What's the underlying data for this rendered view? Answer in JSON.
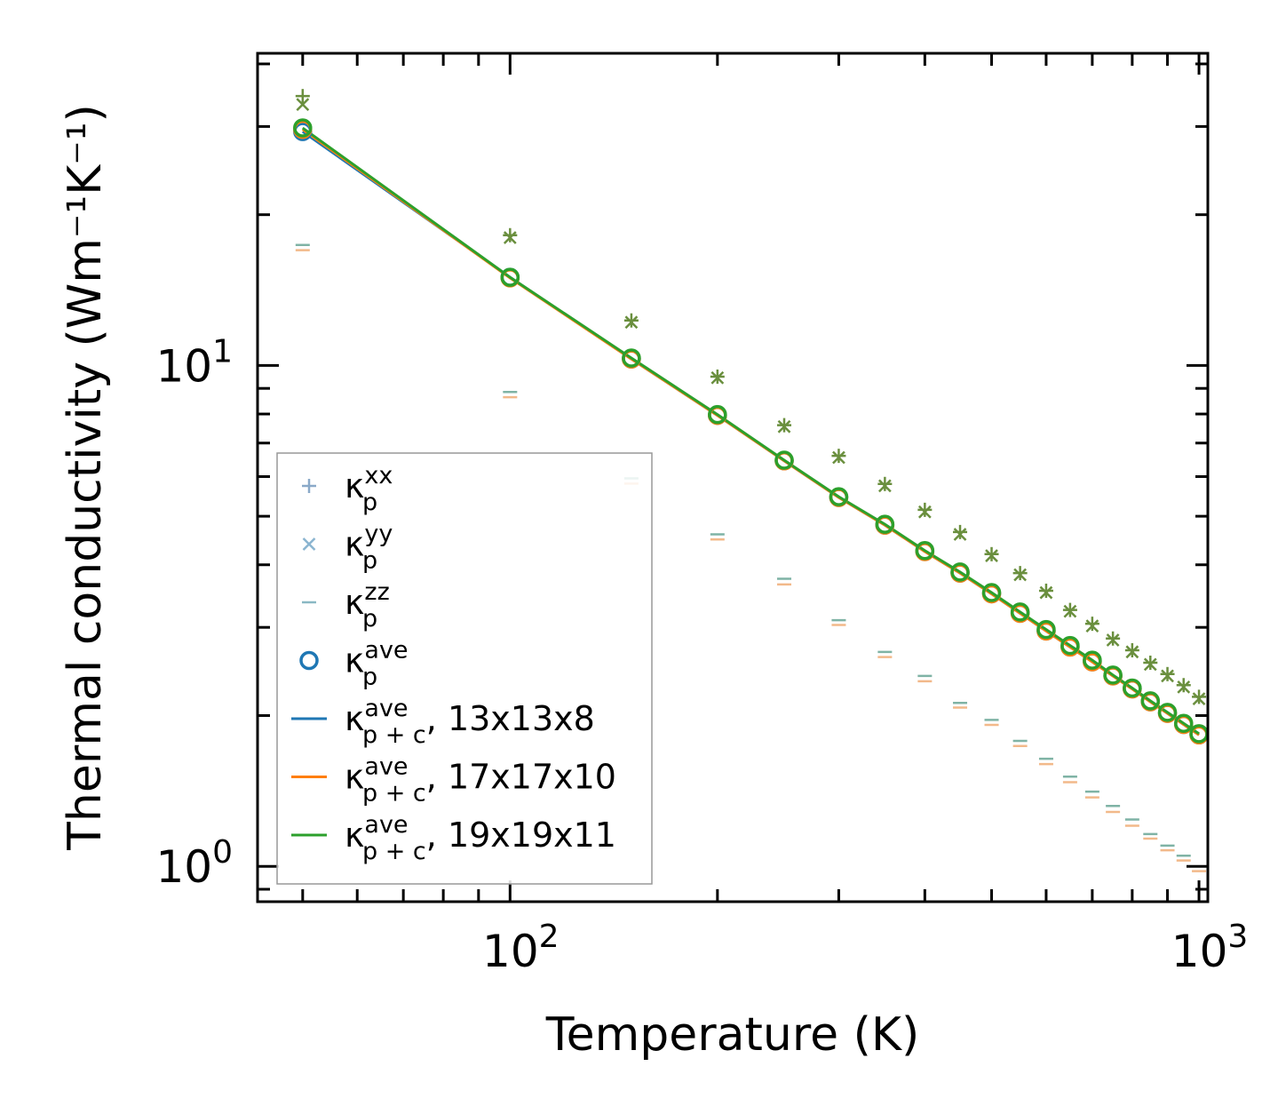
{
  "chart_data": {
    "type": "scatter",
    "xscale": "log",
    "yscale": "log",
    "xlabel": "Temperature (K)",
    "ylabel": "Thermal conductivity (Wm⁻¹K⁻¹)",
    "xlim": [
      43,
      1030
    ],
    "ylim": [
      0.85,
      42
    ],
    "xticks": [
      {
        "value": 100,
        "base": "10",
        "exp": "2"
      },
      {
        "value": 1000,
        "base": "10",
        "exp": "3"
      }
    ],
    "yticks": [
      {
        "value": 1,
        "base": "10",
        "exp": "0"
      },
      {
        "value": 10,
        "base": "10",
        "exp": "1"
      }
    ],
    "x_markers": [
      50,
      100,
      150,
      200,
      250,
      300,
      350,
      400,
      450,
      500,
      550,
      600,
      650,
      700,
      750,
      800,
      850,
      900,
      950,
      1000
    ],
    "x_zz": [
      50,
      100,
      150,
      200,
      250,
      300,
      350,
      400,
      450,
      500,
      550,
      600,
      650,
      700,
      750,
      800,
      850,
      900,
      950,
      1000
    ],
    "series": [
      {
        "name": "kp_xx",
        "marker": "plus",
        "color": "#6a8f3e",
        "values": [
          34.5,
          18.2,
          12.3,
          9.5,
          7.6,
          6.6,
          5.8,
          5.15,
          4.65,
          4.2,
          3.85,
          3.55,
          3.25,
          3.05,
          2.85,
          2.7,
          2.55,
          2.42,
          2.3,
          2.18
        ]
      },
      {
        "name": "kp_yy",
        "marker": "x",
        "color": "#6a8f3e",
        "values": [
          33.2,
          18.0,
          12.2,
          9.45,
          7.55,
          6.55,
          5.75,
          5.1,
          4.6,
          4.17,
          3.82,
          3.52,
          3.23,
          3.02,
          2.83,
          2.68,
          2.53,
          2.4,
          2.28,
          2.16
        ]
      },
      {
        "name": "kp_zz_a",
        "marker": "dash",
        "color": "#7fb3a5",
        "values": [
          17.4,
          8.85,
          5.95,
          4.6,
          3.75,
          3.1,
          2.68,
          2.4,
          2.12,
          1.96,
          1.78,
          1.64,
          1.51,
          1.41,
          1.32,
          1.24,
          1.16,
          1.1,
          1.05,
          1.0
        ]
      },
      {
        "name": "kp_zz_b",
        "marker": "dash",
        "color": "#f2b98a",
        "values": [
          17.2,
          8.75,
          5.88,
          4.55,
          3.7,
          3.07,
          2.65,
          2.37,
          2.1,
          1.94,
          1.76,
          1.62,
          1.49,
          1.39,
          1.3,
          1.22,
          1.15,
          1.09,
          1.04,
          0.99
        ]
      },
      {
        "name": "kp_ave_blue",
        "marker": "circle",
        "color": "#1f77b4",
        "values": [
          29.3,
          15.0,
          10.3,
          7.95,
          6.45,
          5.45,
          4.8,
          4.25,
          3.85,
          3.5,
          3.2,
          2.95,
          2.74,
          2.56,
          2.4,
          2.26,
          2.13,
          2.02,
          1.92,
          1.83
        ]
      },
      {
        "name": "kp_ave_orange",
        "marker": "circle",
        "color": "#ff7f0e",
        "values": [
          29.6,
          14.95,
          10.3,
          7.95,
          6.45,
          5.45,
          4.8,
          4.25,
          3.85,
          3.5,
          3.2,
          2.95,
          2.74,
          2.56,
          2.4,
          2.26,
          2.13,
          2.02,
          1.92,
          1.83
        ]
      },
      {
        "name": "kp_ave_green",
        "marker": "circle",
        "color": "#2ca02c",
        "values": [
          29.8,
          15.0,
          10.35,
          7.98,
          6.47,
          5.47,
          4.82,
          4.27,
          3.87,
          3.52,
          3.22,
          2.97,
          2.76,
          2.58,
          2.41,
          2.27,
          2.14,
          2.03,
          1.93,
          1.84
        ]
      },
      {
        "name": "kpc_13x13x8",
        "marker": "line",
        "color": "#1f77b4",
        "values": [
          29.3,
          15.0,
          10.3,
          7.95,
          6.45,
          5.45,
          4.8,
          4.25,
          3.85,
          3.5,
          3.2,
          2.95,
          2.74,
          2.56,
          2.4,
          2.26,
          2.13,
          2.02,
          1.92,
          1.83
        ]
      },
      {
        "name": "kpc_17x17x10",
        "marker": "line",
        "color": "#ff7f0e",
        "values": [
          29.6,
          14.95,
          10.3,
          7.95,
          6.45,
          5.45,
          4.8,
          4.25,
          3.85,
          3.5,
          3.2,
          2.95,
          2.74,
          2.56,
          2.4,
          2.26,
          2.13,
          2.02,
          1.92,
          1.83
        ]
      },
      {
        "name": "kpc_19x19x11",
        "marker": "line",
        "color": "#2ca02c",
        "values": [
          29.8,
          15.0,
          10.35,
          7.98,
          6.47,
          5.47,
          4.82,
          4.27,
          3.87,
          3.52,
          3.22,
          2.97,
          2.76,
          2.58,
          2.41,
          2.27,
          2.14,
          2.03,
          1.93,
          1.84
        ]
      }
    ],
    "legend": {
      "position": "lower-left",
      "entries": [
        {
          "marker": "plus",
          "color": "#8aa9c8",
          "base": "κ",
          "sub": "p",
          "sup": "xx",
          "suffix": ""
        },
        {
          "marker": "x",
          "color": "#8ab4d0",
          "base": "κ",
          "sub": "p",
          "sup": "yy",
          "suffix": ""
        },
        {
          "marker": "dash",
          "color": "#8ab8c4",
          "base": "κ",
          "sub": "p",
          "sup": "zz",
          "suffix": ""
        },
        {
          "marker": "circle",
          "color": "#1f77b4",
          "base": "κ",
          "sub": "p",
          "sup": "ave",
          "suffix": ""
        },
        {
          "marker": "line",
          "color": "#1f77b4",
          "base": "κ",
          "sub": "p + c",
          "sup": "ave",
          "suffix": ", 13x13x8"
        },
        {
          "marker": "line",
          "color": "#ff7f0e",
          "base": "κ",
          "sub": "p + c",
          "sup": "ave",
          "suffix": ", 17x17x10"
        },
        {
          "marker": "line",
          "color": "#2ca02c",
          "base": "κ",
          "sub": "p + c",
          "sup": "ave",
          "suffix": ", 19x19x11"
        }
      ]
    }
  }
}
